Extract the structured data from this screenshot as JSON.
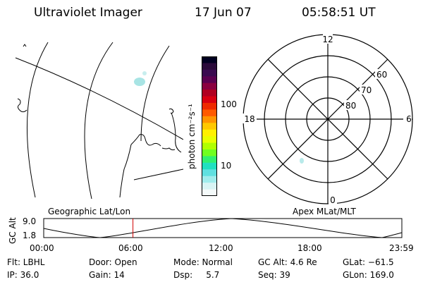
{
  "header": {
    "instrument": "Ultraviolet Imager",
    "date": "17 Jun 07",
    "time": "05:58:51 UT"
  },
  "colorbar": {
    "label": "photon cm⁻²s⁻¹",
    "tick_100": "100",
    "tick_10": "10",
    "colors": [
      "#000020",
      "#2a0a3a",
      "#3a0a50",
      "#5a0050",
      "#8a0040",
      "#b00020",
      "#d80010",
      "#ee2a00",
      "#ff5a00",
      "#ff9500",
      "#ffc800",
      "#fff000",
      "#e8ff00",
      "#b0ff00",
      "#70ff20",
      "#30f070",
      "#20e0c0",
      "#60e0e0",
      "#a0ecec",
      "#d8f4f4",
      "#f4fafa"
    ]
  },
  "polar": {
    "mlt_top": "12",
    "mlt_left": "18",
    "mlt_right": "6",
    "mlt_bottom": "0",
    "lat_60": "60",
    "lat_70": "70",
    "lat_80": "80"
  },
  "labels": {
    "geographic": "Geographic Lat/Lon",
    "apex": "Apex MLat/MLT"
  },
  "altitude_plot": {
    "ylabel": "GC Alt",
    "y_max": "9.0",
    "y_min": "1.8",
    "x_ticks": [
      "00:00",
      "06:00",
      "12:00",
      "18:00",
      "23:59"
    ],
    "current_time_hours": 5.98
  },
  "footer": {
    "flt": "Flt: LBHL",
    "ip": "IP: 36.0",
    "door": "Door: Open",
    "gain": "Gain: 14",
    "mode": "Mode: Normal",
    "dsp": "Dsp:     5.7",
    "gcalt": "GC Alt: 4.6 Re",
    "seq": "Seq: 39",
    "glat": "GLat: −61.5",
    "glon": "GLon: 169.0"
  }
}
